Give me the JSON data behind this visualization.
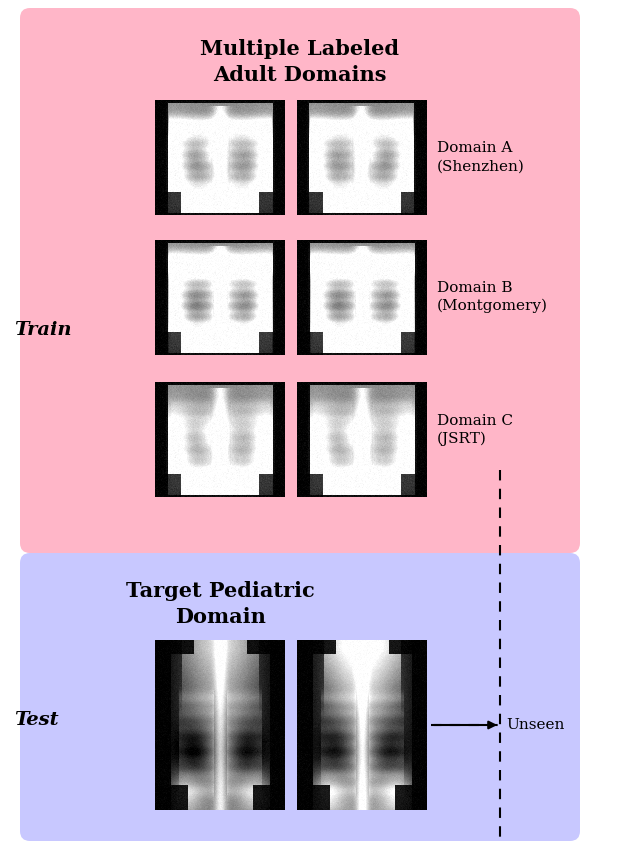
{
  "train_box_color": "#FFB6C8",
  "test_box_color": "#C8C8FF",
  "train_title": "Multiple Labeled\nAdult Domains",
  "test_title": "Target Pediatric\nDomain",
  "train_label": "Train",
  "test_label": "Test",
  "domain_a_label": "Domain A\n(Shenzhen)",
  "domain_b_label": "Domain B\n(Montgomery)",
  "domain_c_label": "Domain C\n(JSRT)",
  "unseen_label": "Unseen",
  "bg_color": "#FFFFFF",
  "title_fontsize": 15,
  "label_fontsize": 14,
  "domain_fontsize": 11
}
